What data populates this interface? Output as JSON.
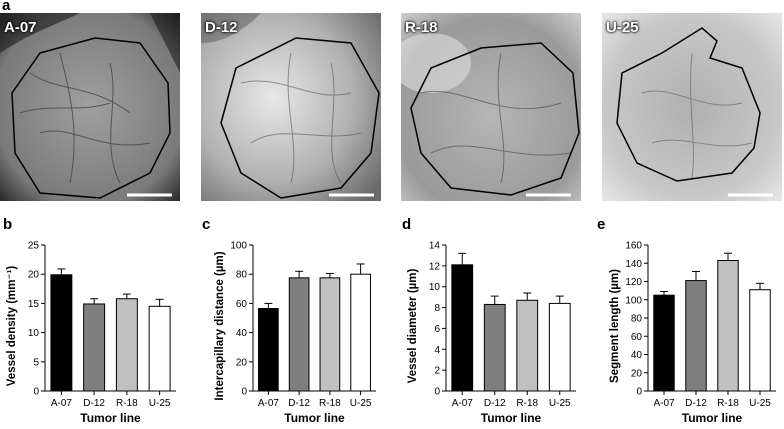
{
  "panels": {
    "a": "a",
    "b": "b",
    "c": "c",
    "d": "d",
    "e": "e"
  },
  "images": [
    {
      "label": "A-07",
      "tone": "#8a8a8a"
    },
    {
      "label": "D-12",
      "tone": "#b8b8b8"
    },
    {
      "label": "R-18",
      "tone": "#a8a8a8"
    },
    {
      "label": "U-25",
      "tone": "#b0b0b0"
    }
  ],
  "bar_colors": [
    "#000000",
    "#7f7f7f",
    "#c0c0c0",
    "#ffffff"
  ],
  "chart_data": [
    {
      "type": "bar",
      "categories": [
        "A-07",
        "D-12",
        "R-18",
        "U-25"
      ],
      "values": [
        19.9,
        14.9,
        15.8,
        14.5
      ],
      "errors": [
        1.0,
        0.9,
        0.8,
        1.2
      ],
      "ylim": [
        0,
        25
      ],
      "yticks": [
        0,
        5,
        10,
        15,
        20,
        25
      ],
      "ylabel": "Vessel density (mm⁻¹)",
      "xlabel": "Tumor line"
    },
    {
      "type": "bar",
      "categories": [
        "A-07",
        "D-12",
        "R-18",
        "U-25"
      ],
      "values": [
        56.5,
        77.5,
        77.5,
        80.0
      ],
      "errors": [
        3.5,
        4.5,
        3.0,
        7.0
      ],
      "ylim": [
        0,
        100
      ],
      "yticks": [
        0,
        20,
        40,
        60,
        80,
        100
      ],
      "ylabel": "Intercapillary distance (µm)",
      "xlabel": "Tumor line"
    },
    {
      "type": "bar",
      "categories": [
        "A-07",
        "D-12",
        "R-18",
        "U-25"
      ],
      "values": [
        12.1,
        8.3,
        8.7,
        8.4
      ],
      "errors": [
        1.1,
        0.8,
        0.7,
        0.7
      ],
      "ylim": [
        0,
        14
      ],
      "yticks": [
        0,
        2,
        4,
        6,
        8,
        10,
        12,
        14
      ],
      "ylabel": "Vessel diameter (µm)",
      "xlabel": "Tumor line"
    },
    {
      "type": "bar",
      "categories": [
        "A-07",
        "D-12",
        "R-18",
        "U-25"
      ],
      "values": [
        105,
        121,
        143,
        111
      ],
      "errors": [
        4,
        10,
        8,
        7
      ],
      "ylim": [
        0,
        160
      ],
      "yticks": [
        0,
        20,
        40,
        60,
        80,
        100,
        120,
        140,
        160
      ],
      "ylabel": "Segment length (µm)",
      "xlabel": "Tumor line"
    }
  ]
}
